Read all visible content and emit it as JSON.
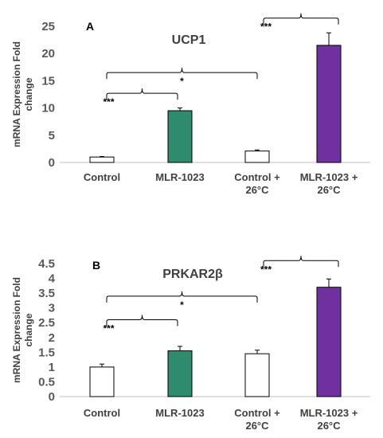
{
  "chart_data": [
    {
      "type": "bar",
      "panel": "A",
      "title": "UCP1",
      "ylabel_lines": [
        "mRNA Expression Fold",
        "change"
      ],
      "ylim": [
        0,
        25
      ],
      "yticks": [
        0,
        5,
        10,
        15,
        20,
        25
      ],
      "categories": [
        [
          "Control"
        ],
        [
          "MLR-1023"
        ],
        [
          "Control +",
          "26°C"
        ],
        [
          "MLR-1023 +",
          "26°C"
        ]
      ],
      "values": [
        1.0,
        9.5,
        2.1,
        21.5
      ],
      "errors": [
        0.1,
        0.5,
        0.2,
        2.3
      ],
      "bar_colors": [
        "#ffffff",
        "#2e8b6e",
        "#ffffff",
        "#7030a0"
      ],
      "comparisons": [
        {
          "from": 0,
          "to": 1,
          "level": 12.7,
          "label": "***",
          "label_side": "left"
        },
        {
          "from": 0,
          "to": 2,
          "level": 16.5,
          "label": "*",
          "label_side": "below"
        },
        {
          "from": 2,
          "to": 3,
          "level": 26.5,
          "label": "***",
          "label_side": "left"
        }
      ]
    },
    {
      "type": "bar",
      "panel": "B",
      "title": "PRKAR2β",
      "ylabel_lines": [
        "mRNA Expression Fold",
        "change"
      ],
      "ylim": [
        0,
        4.5
      ],
      "yticks": [
        0,
        0.5,
        1,
        1.5,
        2,
        2.5,
        3,
        3.5,
        4,
        4.5
      ],
      "categories": [
        [
          "Control"
        ],
        [
          "MLR-1023"
        ],
        [
          "Control +",
          "26°C"
        ],
        [
          "MLR-1023 +",
          "26°C"
        ]
      ],
      "values": [
        1.0,
        1.55,
        1.45,
        3.7
      ],
      "errors": [
        0.1,
        0.15,
        0.12,
        0.28
      ],
      "bar_colors": [
        "#ffffff",
        "#2e8b6e",
        "#ffffff",
        "#7030a0"
      ],
      "comparisons": [
        {
          "from": 0,
          "to": 1,
          "level": 2.6,
          "label": "***",
          "label_side": "left"
        },
        {
          "from": 0,
          "to": 2,
          "level": 3.4,
          "label": "*",
          "label_side": "below"
        },
        {
          "from": 2,
          "to": 3,
          "level": 4.6,
          "label": "***",
          "label_side": "left"
        }
      ]
    }
  ]
}
